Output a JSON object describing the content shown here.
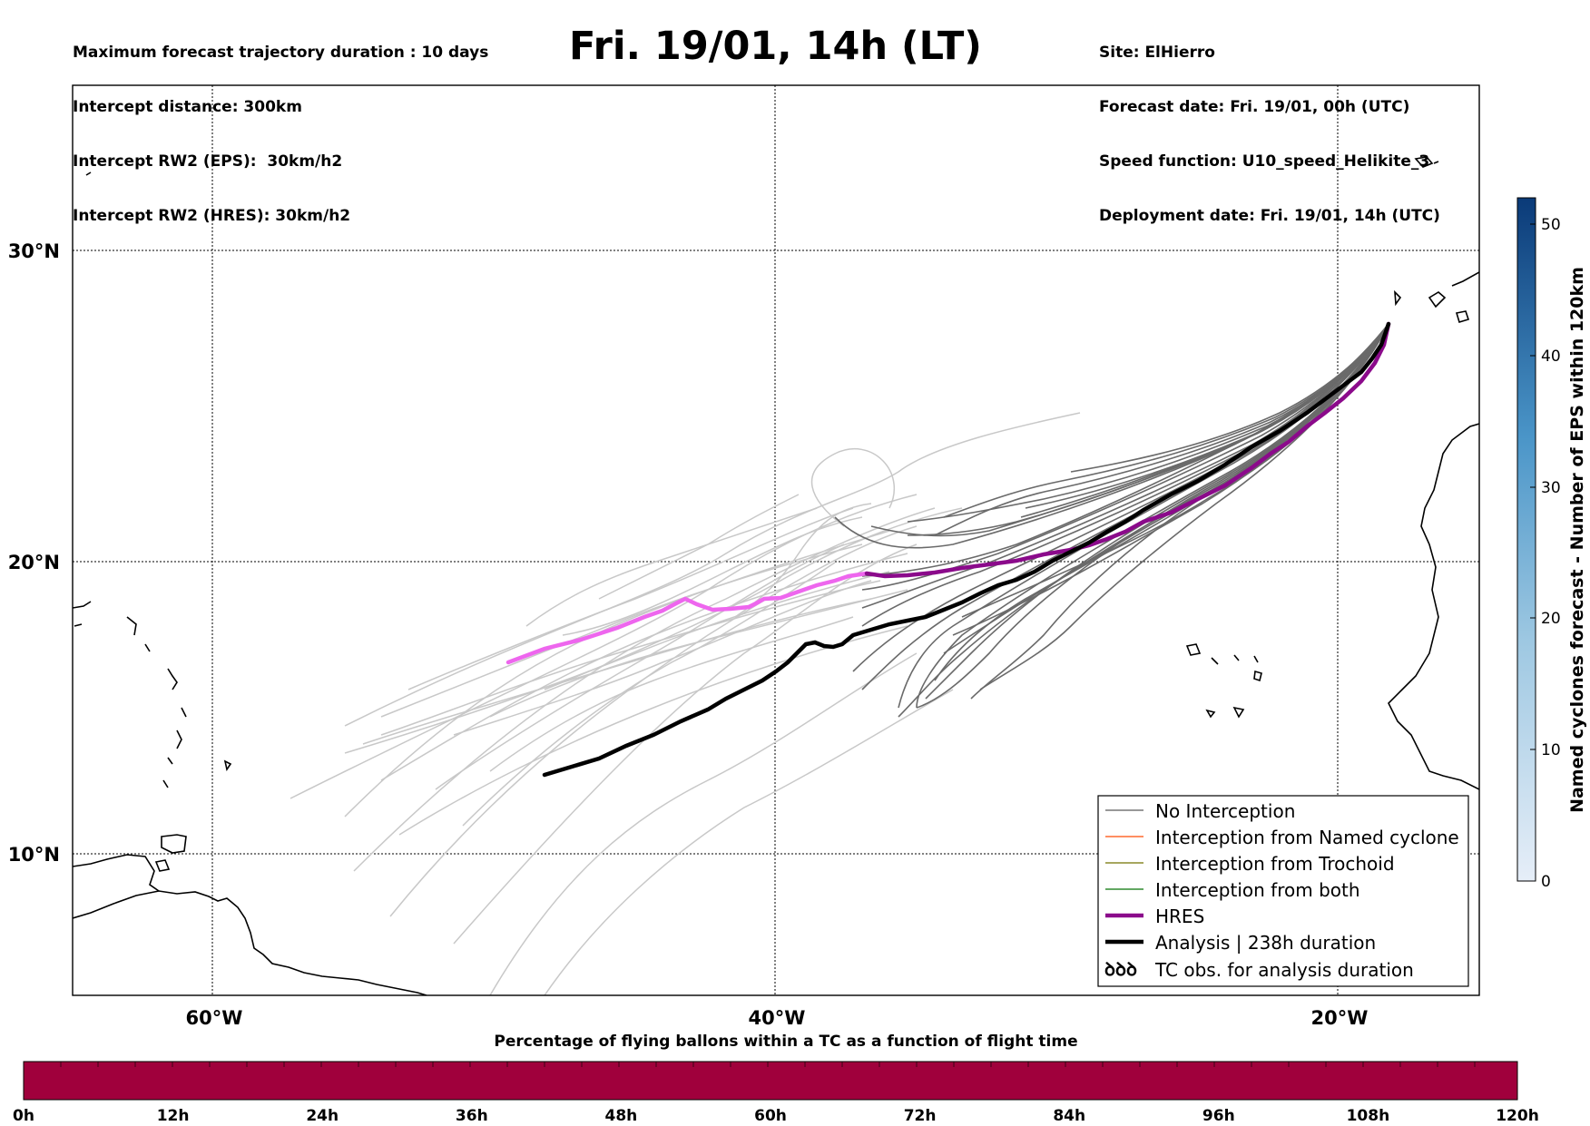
{
  "title": "Fri. 19/01, 14h (LT)",
  "info_left": [
    "Maximum forecast trajectory duration : 10 days",
    "Intercept distance: 300km",
    "Intercept RW2 (EPS):  30km/h2",
    "Intercept RW2 (HRES): 30km/h2"
  ],
  "info_right": [
    "Site: ElHierro",
    "Forecast date: Fri. 19/01, 00h (UTC)",
    "Speed function: U10_speed_Helikite_3",
    "Deployment date: Fri. 19/01, 14h (UTC)"
  ],
  "axes": {
    "lat_ticks": [
      "30°N",
      "20°N",
      "10°N"
    ],
    "lon_ticks": [
      "60°W",
      "40°W",
      "20°W"
    ]
  },
  "legend": [
    {
      "label": "No Interception",
      "color": "#777777"
    },
    {
      "label": "Interception from Named cyclone",
      "color": "#ff6a2e"
    },
    {
      "label": "Interception from Trochoid",
      "color": "#8a8a2a"
    },
    {
      "label": "Interception from both",
      "color": "#2e8b2e"
    },
    {
      "label": "HRES",
      "color": "#8b0a8b"
    },
    {
      "label": "Analysis | 238h duration",
      "color": "#000000"
    },
    {
      "label": "TC obs. for analysis duration",
      "color": "#000000",
      "icon": "cyclone-icon"
    }
  ],
  "legend_symbol": "ꝺꝺꝺ",
  "colorbar": {
    "label": "Named cyclones forecast - Number of EPS within 120km",
    "ticks": [
      "50",
      "40",
      "30",
      "20",
      "10",
      "0"
    ],
    "range": [
      0,
      52
    ]
  },
  "bottom_bar": {
    "title": "Percentage of flying ballons within a TC as a function of flight time",
    "ticks": [
      "0h",
      "12h",
      "24h",
      "36h",
      "48h",
      "60h",
      "72h",
      "84h",
      "96h",
      "108h",
      "120h"
    ],
    "fill_color": "#a0003c"
  },
  "colors": {
    "hres_light": "#ee66ee",
    "hres_dark": "#8b0a8b",
    "eps_light": "#c8c8c8",
    "eps_dark": "#6a6a6a",
    "analysis": "#000000"
  }
}
